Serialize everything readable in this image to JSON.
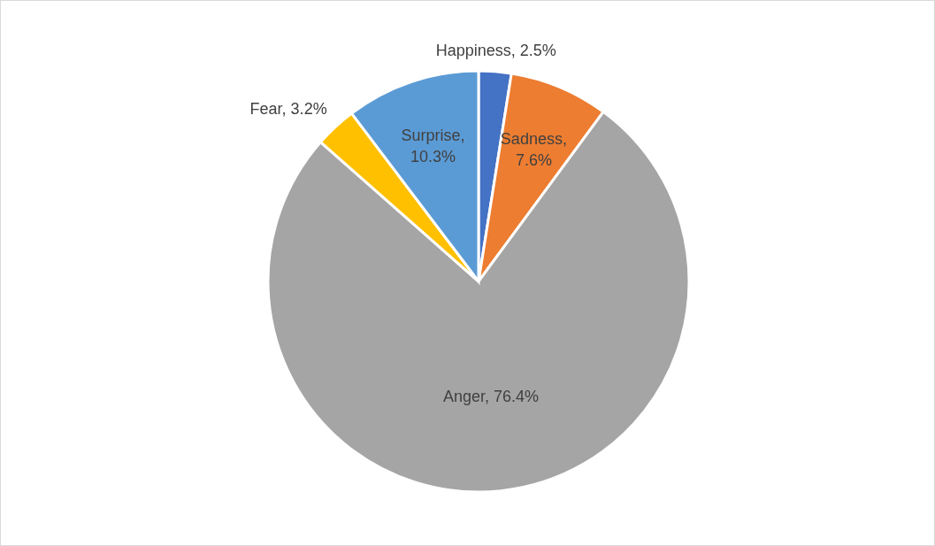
{
  "chart_data": {
    "type": "pie",
    "categories": [
      "Happiness",
      "Sadness",
      "Anger",
      "Fear",
      "Surprise"
    ],
    "values": [
      2.5,
      7.6,
      76.4,
      3.2,
      10.3
    ],
    "colors": [
      "#4472c4",
      "#ed7d31",
      "#a5a5a5",
      "#ffc000",
      "#5b9bd5"
    ],
    "value_labels": [
      ", 2.5%",
      ", 7.6%",
      ", 76.4%",
      ", 3.2%",
      ", 10.3%"
    ],
    "legend": false
  }
}
